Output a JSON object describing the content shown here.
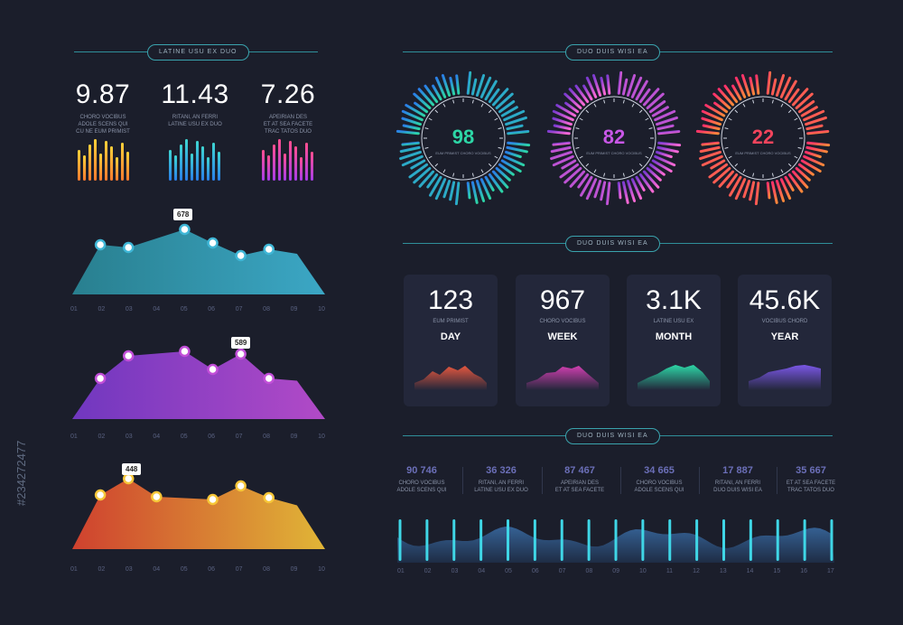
{
  "sections": {
    "left_title": "LATINE USU EX DUO",
    "right_top_title": "DUO DUIS WISI EA",
    "right_mid_title": "DUO DUIS WISI EA",
    "right_bottom_title": "DUO DUIS WISI EA"
  },
  "kpis": [
    {
      "value": "9.87",
      "desc": "CHORO VOCIBUS\nADOLE SCENS QUI\nCU NE EUM PRIMIST"
    },
    {
      "value": "11.43",
      "desc": "RITANI, AN FERRI\nLATINE USU EX DUO"
    },
    {
      "value": "7.26",
      "desc": "APEIRIAN DES\nET AT SEA FACETE\nTRAC TATOS DUO"
    }
  ],
  "gauges": [
    {
      "value": "98",
      "label": "EUM PRIMIST CHORO VOCIBUS",
      "color": "#2dd6a6"
    },
    {
      "value": "82",
      "label": "EUM PRIMIST CHORO VOCIBUS",
      "color": "#c857e6"
    },
    {
      "value": "22",
      "label": "EUM PRIMIST CHORO VOCIBUS",
      "color": "#f2445c"
    }
  ],
  "cards": [
    {
      "value": "123",
      "sub": "EUM PRIMIST",
      "period": "DAY"
    },
    {
      "value": "967",
      "sub": "CHORO VOCIBUS",
      "period": "WEEK"
    },
    {
      "value": "3.1K",
      "sub": "LATINE USU EX",
      "period": "MONTH"
    },
    {
      "value": "45.6K",
      "sub": "VOCIBUS CHORD",
      "period": "YEAR"
    }
  ],
  "stats": [
    {
      "value": "90 746",
      "desc": "CHORO VOCIBUS\nADOLE SCENS QUI"
    },
    {
      "value": "36 326",
      "desc": "RITANI, AN FERRI\nLATINE USU EX DUO"
    },
    {
      "value": "87 467",
      "desc": "APEIRIAN DES\nET AT SEA FACETE"
    },
    {
      "value": "34 665",
      "desc": "CHORO VOCIBUS\nADOLE SCENS QUI"
    },
    {
      "value": "17 887",
      "desc": "RITANI, AN FERRI\nDUO DUIS WISI EA"
    },
    {
      "value": "35 667",
      "desc": "ET AT SEA FACETE\nTRAC TATOS DUO"
    }
  ],
  "watermark": "#234272477",
  "chart_data": [
    {
      "type": "area",
      "x": [
        "01",
        "02",
        "03",
        "04",
        "05",
        "06",
        "07",
        "08",
        "09",
        "10"
      ],
      "values": [
        null,
        55,
        52,
        null,
        72,
        57,
        43,
        50,
        null,
        null
      ],
      "annotation": "678"
    },
    {
      "type": "area",
      "x": [
        "01",
        "02",
        "03",
        "04",
        "05",
        "06",
        "07",
        "08",
        "09",
        "10"
      ],
      "values": [
        null,
        45,
        70,
        null,
        75,
        55,
        72,
        45,
        null,
        null
      ],
      "annotation": "589"
    },
    {
      "type": "area",
      "x": [
        "01",
        "02",
        "03",
        "04",
        "05",
        "06",
        "07",
        "08",
        "09",
        "10"
      ],
      "values": [
        null,
        60,
        78,
        58,
        null,
        55,
        70,
        57,
        null,
        null
      ],
      "annotation": "448"
    },
    {
      "type": "area",
      "x": [
        "01",
        "02",
        "03",
        "04",
        "05",
        "06",
        "07",
        "08",
        "09",
        "10",
        "11",
        "12",
        "13",
        "14",
        "15",
        "16",
        "17"
      ]
    }
  ]
}
